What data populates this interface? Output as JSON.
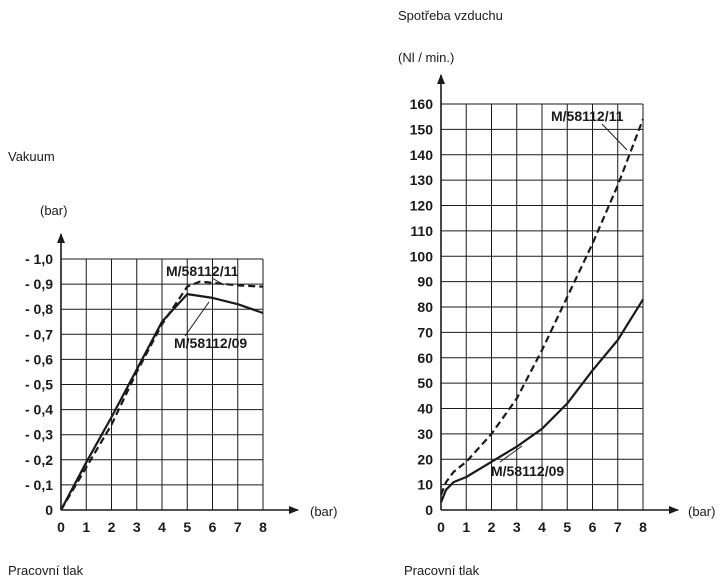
{
  "chart_data": [
    {
      "type": "line",
      "title": "",
      "ylabel": "Vakuum",
      "yunit": "(bar)",
      "xlabel": "Pracovní tlak",
      "xunit": "(bar)",
      "xlim": [
        0,
        8
      ],
      "ylim": [
        0,
        1.0
      ],
      "x_ticks": [
        "0",
        "1",
        "2",
        "3",
        "4",
        "5",
        "6",
        "7",
        "8"
      ],
      "y_ticks": [
        "0",
        "- 0,1",
        "- 0,2",
        "- 0,3",
        "- 0,4",
        "- 0,5",
        "- 0,6",
        "- 0,7",
        "- 0,8",
        "- 0,9",
        "- 1,0"
      ],
      "grid": true,
      "series": [
        {
          "name": "M/58112/11",
          "style": "dashed",
          "x": [
            0,
            1,
            2,
            3,
            4,
            5,
            5.5,
            6,
            7,
            8
          ],
          "y": [
            0,
            0.17,
            0.34,
            0.55,
            0.74,
            0.89,
            0.91,
            0.905,
            0.895,
            0.89
          ]
        },
        {
          "name": "M/58112/09",
          "style": "solid",
          "x": [
            0,
            1,
            2,
            3,
            4,
            5,
            6,
            7,
            8
          ],
          "y": [
            0,
            0.19,
            0.37,
            0.56,
            0.75,
            0.86,
            0.845,
            0.82,
            0.785
          ]
        }
      ]
    },
    {
      "type": "line",
      "title": "",
      "ylabel": "Spotřeba vzduchu",
      "yunit": "(Nl / min.)",
      "xlabel": "Pracovní tlak",
      "xunit": "(bar)",
      "xlim": [
        0,
        8
      ],
      "ylim": [
        0,
        160
      ],
      "x_ticks": [
        "0",
        "1",
        "2",
        "3",
        "4",
        "5",
        "6",
        "7",
        "8"
      ],
      "y_ticks": [
        "0",
        "10",
        "20",
        "30",
        "40",
        "50",
        "60",
        "70",
        "80",
        "90",
        "100",
        "110",
        "120",
        "130",
        "140",
        "150",
        "160"
      ],
      "grid": true,
      "series": [
        {
          "name": "M/58112/11",
          "style": "dashed",
          "x": [
            0,
            0.2,
            0.5,
            1,
            2,
            3,
            4,
            5,
            6,
            7,
            8
          ],
          "y": [
            6,
            11,
            15,
            19,
            30,
            44,
            63,
            84,
            105,
            128,
            154
          ]
        },
        {
          "name": "M/58112/09",
          "style": "solid",
          "x": [
            0,
            0.2,
            0.5,
            1,
            2,
            3,
            4,
            5,
            6,
            7,
            8
          ],
          "y": [
            3,
            8,
            11,
            13,
            19,
            25,
            32,
            42,
            55,
            67,
            83
          ]
        }
      ]
    }
  ]
}
